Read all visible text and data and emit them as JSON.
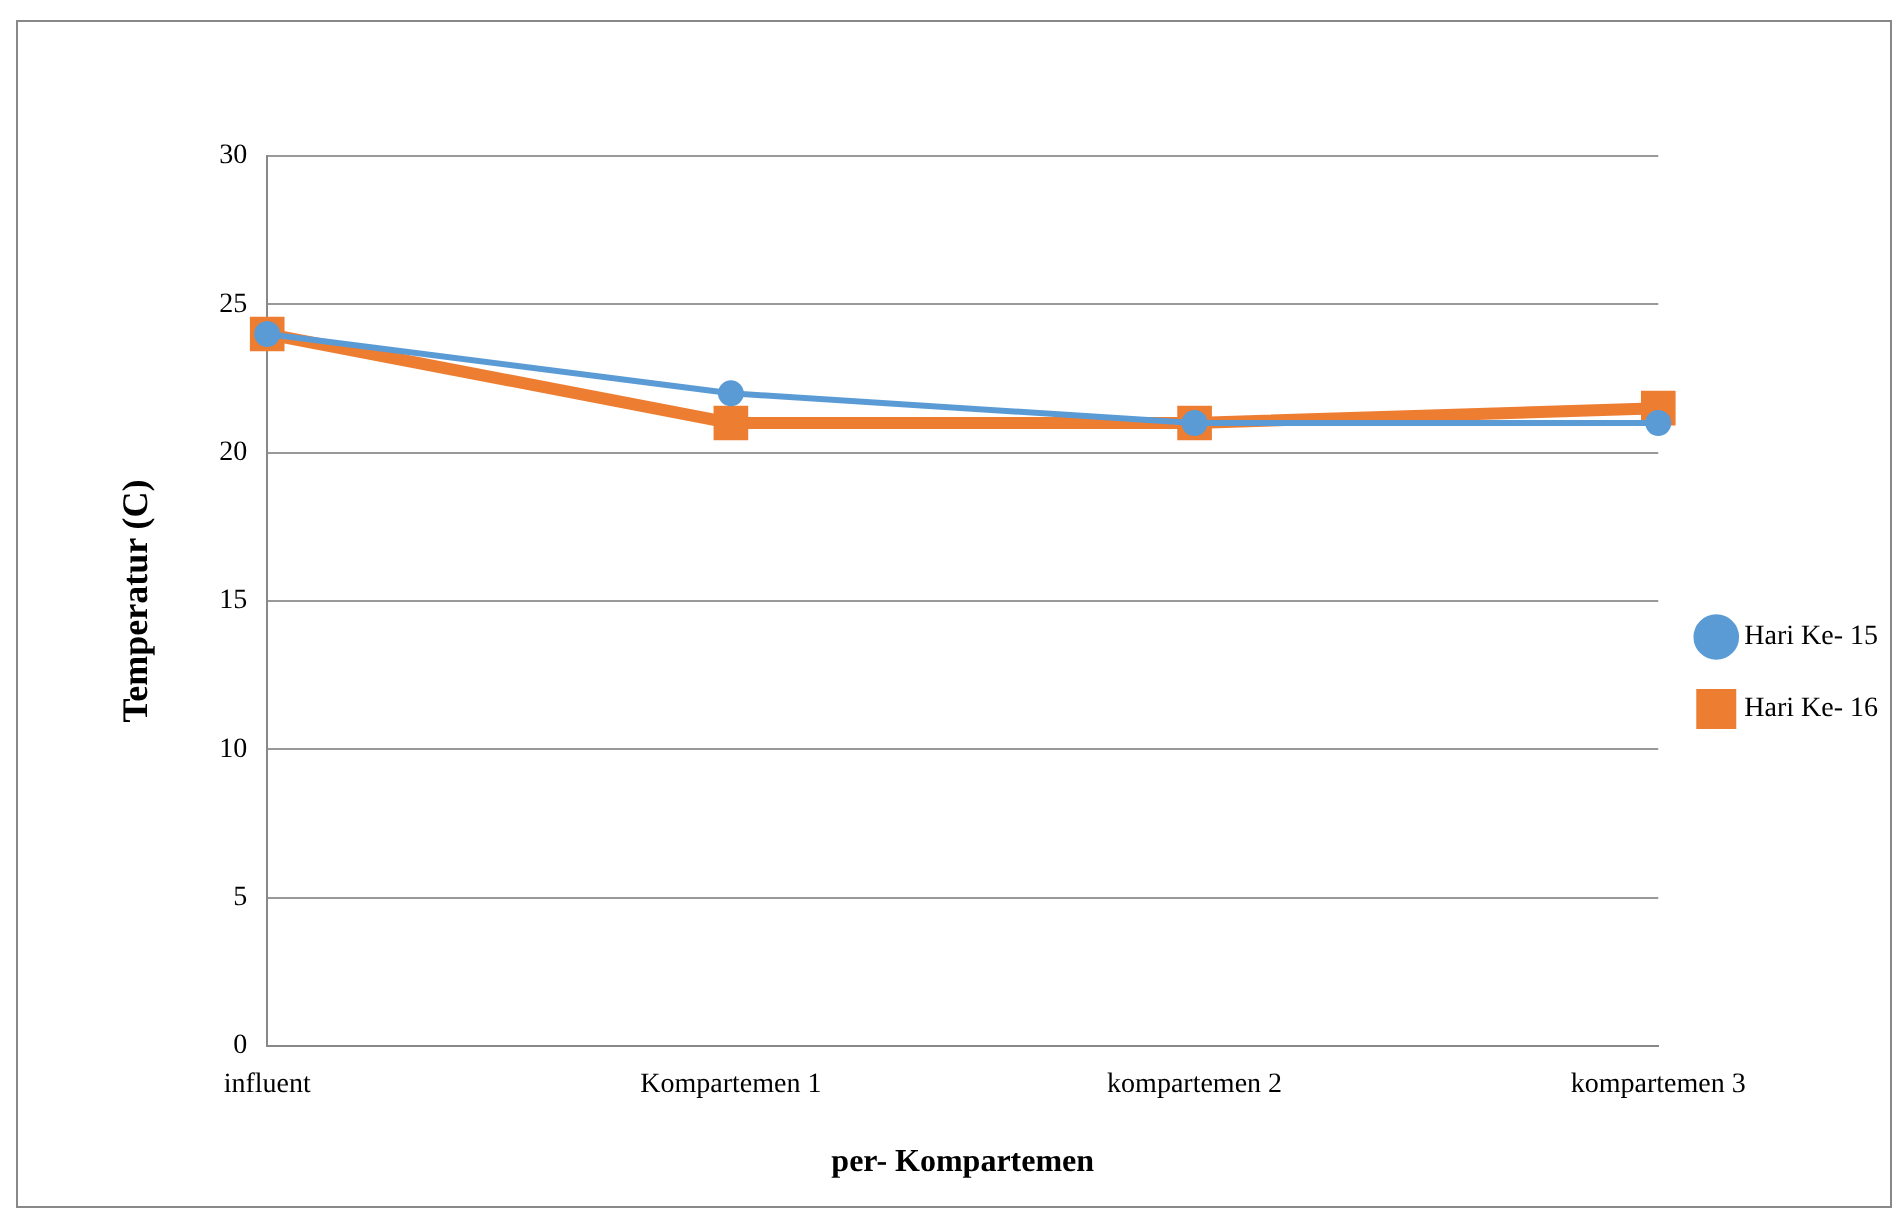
{
  "chart_data": {
    "type": "line",
    "xlabel": "per- Kompartemen",
    "ylabel": "Temperatur (C)",
    "categories": [
      "influent",
      "Kompartemen 1",
      "kompartemen 2",
      "kompartemen 3"
    ],
    "series": [
      {
        "name": "Hari Ke- 15",
        "color": "#5b9bd5",
        "values": [
          24,
          22,
          21,
          21
        ],
        "marker": "circle"
      },
      {
        "name": "Hari Ke- 16",
        "color": "#ed7d31",
        "values": [
          24,
          21,
          21,
          21.5
        ],
        "marker": "square"
      }
    ],
    "ylim": [
      0,
      30
    ],
    "yticks": [
      0,
      5,
      10,
      15,
      20,
      25,
      30
    ],
    "grid": "y",
    "legend": "right",
    "line_style": "solid"
  }
}
